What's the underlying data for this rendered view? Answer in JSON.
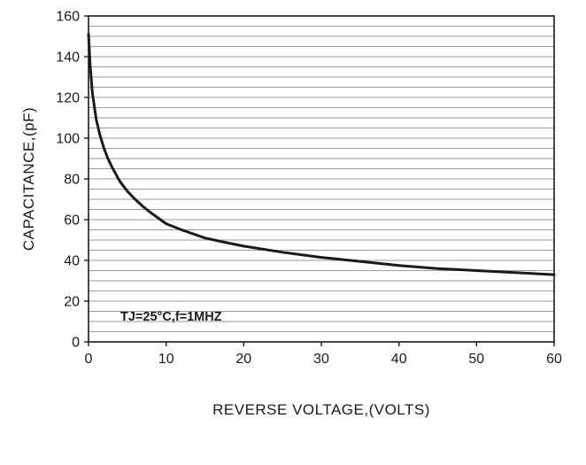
{
  "chart_data": {
    "type": "line",
    "title": "",
    "xlabel": "REVERSE VOLTAGE,(VOLTS)",
    "ylabel": "CAPACITANCE,(pF)",
    "annotation": "TJ=25°C,f=1MHZ",
    "xlim": [
      0,
      60
    ],
    "ylim": [
      0,
      160
    ],
    "xticks": [
      0,
      10,
      20,
      30,
      40,
      50,
      60
    ],
    "yticks": [
      0,
      20,
      40,
      60,
      80,
      100,
      120,
      140,
      160
    ],
    "grid": {
      "horizontal_step": 5,
      "vertical": false,
      "color": "#9a9a9a"
    },
    "frame_color": "#1a1a1a",
    "line_color": "#1a1a1a",
    "line_width": 3,
    "series": [
      {
        "name": "capacitance-vs-reverse-voltage",
        "x": [
          0,
          0.2,
          0.5,
          1,
          1.5,
          2,
          2.5,
          3,
          4,
          5,
          6,
          7,
          8,
          10,
          12,
          15,
          18,
          20,
          25,
          30,
          35,
          40,
          45,
          50,
          55,
          60
        ],
        "y": [
          151,
          136,
          122,
          109,
          101,
          95,
          90,
          86,
          79,
          74,
          70,
          66.5,
          63.5,
          58,
          55,
          51,
          48.5,
          47,
          44,
          41.5,
          39.5,
          37.5,
          36,
          35,
          34,
          33
        ]
      }
    ]
  }
}
